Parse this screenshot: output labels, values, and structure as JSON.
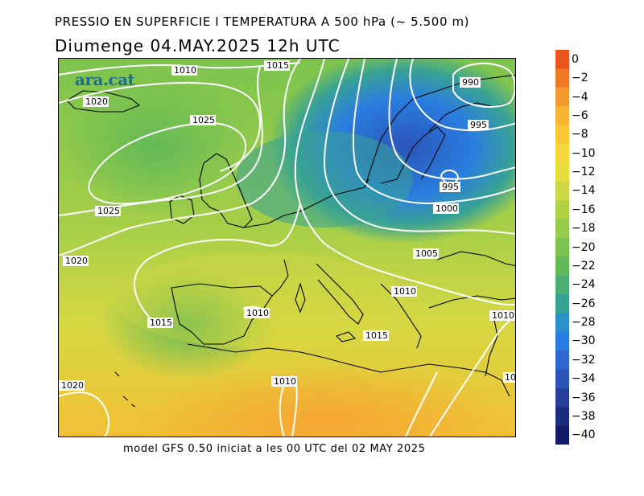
{
  "header": {
    "title": "PRESSIO EN SUPERFICIE I TEMPERATURA A 500 hPa (~ 5.500 m)",
    "date_line": "Diumenge  04.MAY.2025  12h  UTC"
  },
  "logo": {
    "text": "ara.cat",
    "color": "#1b6e8a"
  },
  "map": {
    "isobar_labels": [
      "1010",
      "1015",
      "1020",
      "1025",
      "1025",
      "1020",
      "1015",
      "1010",
      "1010",
      "1015",
      "1020",
      "990",
      "995",
      "995",
      "1000",
      "1005",
      "1010",
      "1010",
      "10"
    ],
    "isobar_color": "#ffffff",
    "coastline_color": "#000000"
  },
  "footer": {
    "text": "model GFS 0.50 iniciat a les 00 UTC del 02 MAY 2025"
  },
  "colorbar": {
    "labels": [
      "0",
      "−2",
      "−4",
      "−6",
      "−8",
      "−10",
      "−12",
      "−14",
      "−16",
      "−18",
      "−20",
      "−22",
      "−24",
      "−26",
      "−28",
      "−30",
      "−32",
      "−34",
      "−36",
      "−38",
      "−40"
    ],
    "colors": [
      "#e8551e",
      "#f07a28",
      "#f39a30",
      "#f6b535",
      "#f8c838",
      "#f5d63c",
      "#e6dc40",
      "#ccd843",
      "#b0d246",
      "#94cb4a",
      "#7cc34e",
      "#63b957",
      "#4bae74",
      "#38a294",
      "#2b90c8",
      "#2a7de0",
      "#2c68d0",
      "#2c54b8",
      "#26409a",
      "#1e2c80",
      "#141a66"
    ]
  }
}
